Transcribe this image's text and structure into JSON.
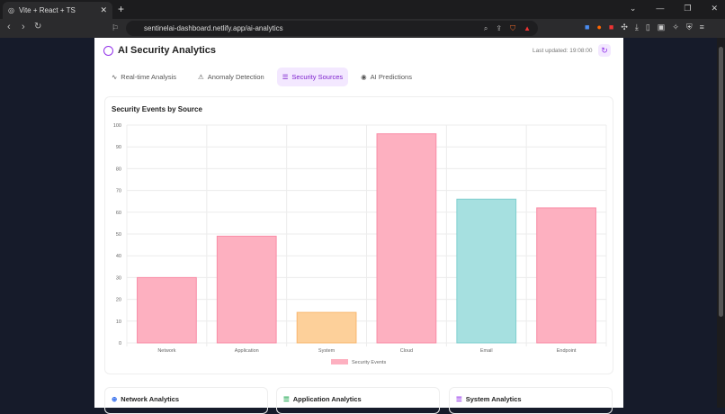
{
  "browser": {
    "tab_title": "Vite + React + TS",
    "url": "sentinelai-dashboard.netlify.app/ai-analytics"
  },
  "header": {
    "title": "AI Security Analytics",
    "last_updated": "Last updated: 19:08:00"
  },
  "tabs": [
    {
      "label": "Real-time Analysis",
      "icon": "activity-icon"
    },
    {
      "label": "Anomaly Detection",
      "icon": "warning-icon"
    },
    {
      "label": "Security Sources",
      "icon": "database-icon",
      "active": true
    },
    {
      "label": "AI Predictions",
      "icon": "brain-icon"
    }
  ],
  "chart_card": {
    "title": "Security Events by Source"
  },
  "chart_data": {
    "type": "bar",
    "title": "Security Events by Source",
    "categories": [
      "Network",
      "Application",
      "System",
      "Cloud",
      "Email",
      "Endpoint"
    ],
    "values": [
      30,
      49,
      14,
      96,
      66,
      62
    ],
    "colors": [
      "#fdb0c0",
      "#fdb0c0",
      "#fdd09a",
      "#fdb0c0",
      "#a6e0e0",
      "#fdb0c0"
    ],
    "ylim": [
      0,
      100
    ],
    "yticks": [
      "0",
      "10",
      "20",
      "30",
      "40",
      "50",
      "60",
      "70",
      "80",
      "90",
      "100"
    ],
    "legend": "Security Events",
    "legend_position": "bottom",
    "grid": true
  },
  "sections": [
    {
      "title": "Network Analytics",
      "color": "#2563eb"
    },
    {
      "title": "Application Analytics",
      "color": "#16a34a"
    },
    {
      "title": "System Analytics",
      "color": "#9333ea"
    }
  ]
}
